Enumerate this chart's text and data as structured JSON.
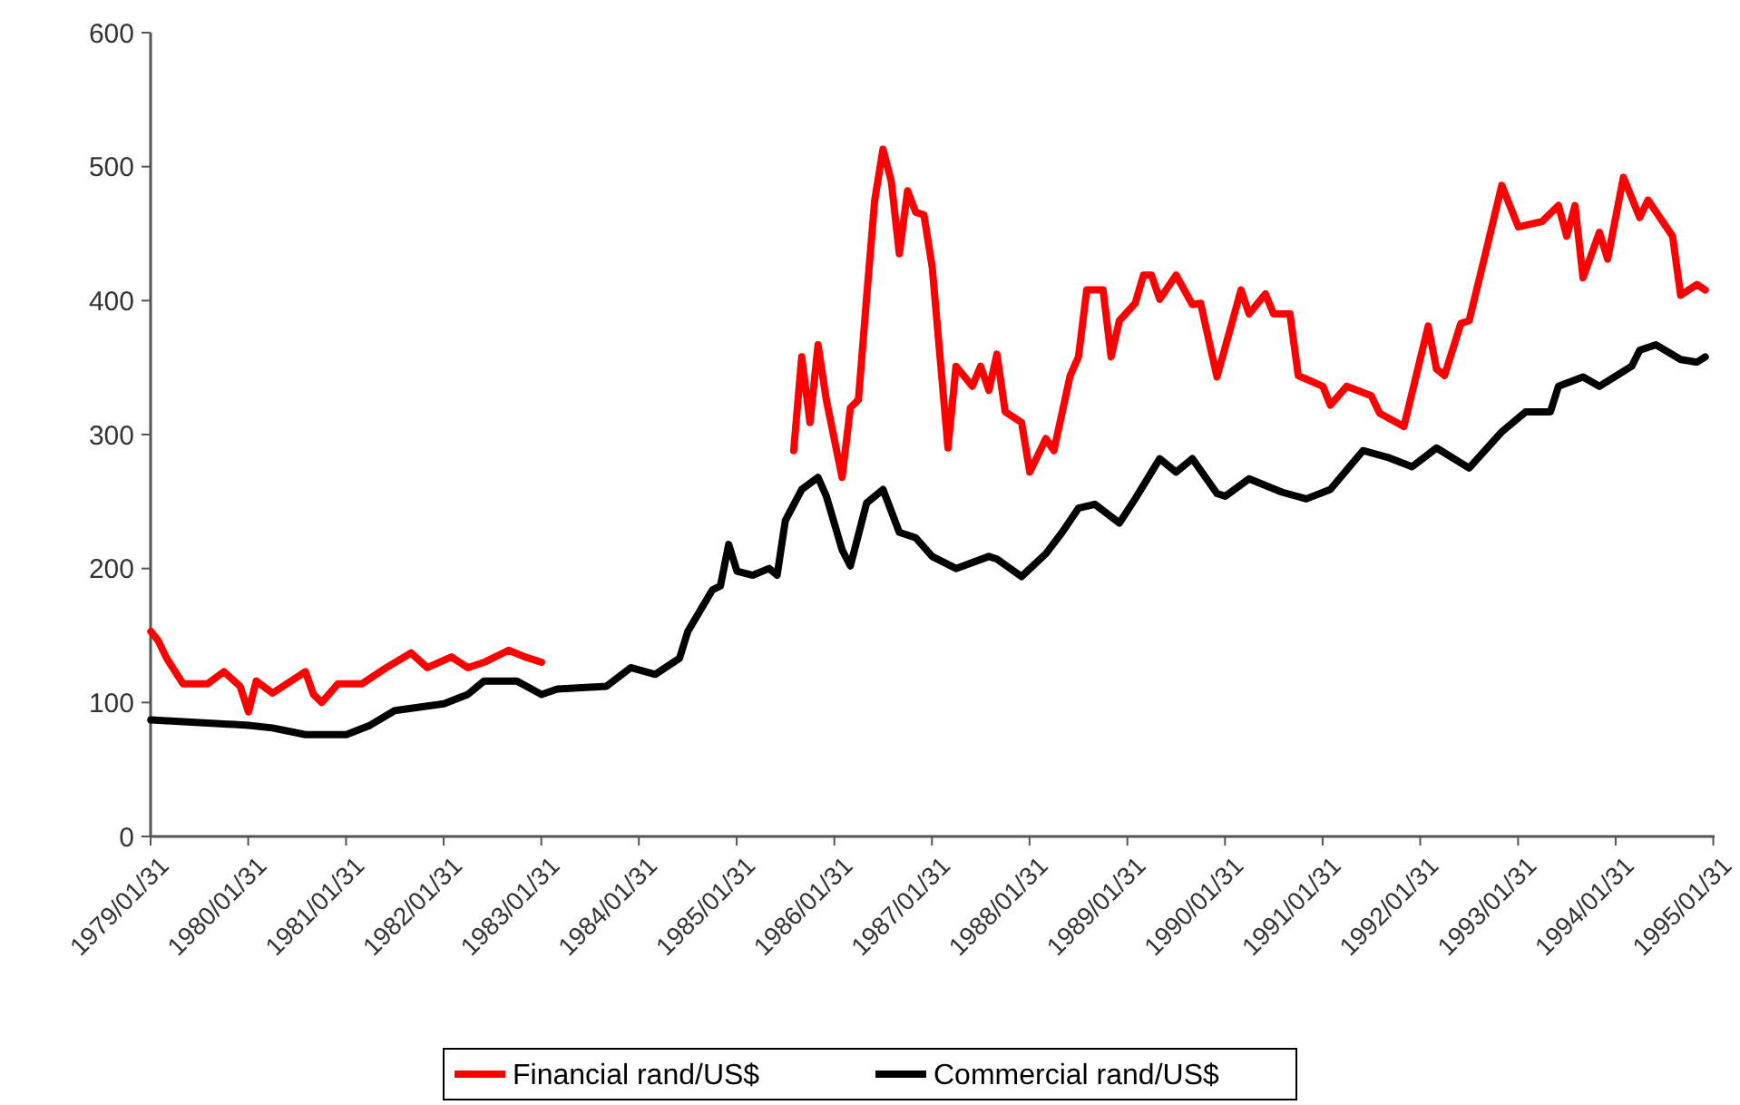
{
  "chart_data": {
    "type": "line",
    "xlim": [
      "1979-01-31",
      "1995-02-05"
    ],
    "xticks": [
      {
        "value": "1979-01-31",
        "label": "1979/01/31"
      },
      {
        "value": "1980-01-31",
        "label": "1980/01/31"
      },
      {
        "value": "1981-01-31",
        "label": "1981/01/31"
      },
      {
        "value": "1982-01-31",
        "label": "1982/01/31"
      },
      {
        "value": "1983-01-31",
        "label": "1983/01/31"
      },
      {
        "value": "1984-01-31",
        "label": "1984/01/31"
      },
      {
        "value": "1985-01-31",
        "label": "1985/01/31"
      },
      {
        "value": "1986-01-31",
        "label": "1986/01/31"
      },
      {
        "value": "1987-01-31",
        "label": "1987/01/31"
      },
      {
        "value": "1988-01-31",
        "label": "1988/01/31"
      },
      {
        "value": "1989-01-31",
        "label": "1989/01/31"
      },
      {
        "value": "1990-01-31",
        "label": "1990/01/31"
      },
      {
        "value": "1991-01-31",
        "label": "1991/01/31"
      },
      {
        "value": "1992-01-31",
        "label": "1992/01/31"
      },
      {
        "value": "1993-01-31",
        "label": "1993/01/31"
      },
      {
        "value": "1994-01-31",
        "label": "1994/01/31"
      },
      {
        "value": "1995-01-31",
        "label": "1995/01/31"
      }
    ],
    "ylim": [
      0,
      600
    ],
    "yticks": [
      0,
      100,
      200,
      300,
      400,
      500,
      600
    ],
    "grid": false,
    "legend": "bottom",
    "marker": "none",
    "line_style": "solid",
    "series": [
      {
        "name": "Financial rand/US$",
        "color": "#ff0000",
        "x": [
          "1979-02",
          "1979-03",
          "1979-04",
          "1979-06",
          "1979-09",
          "1979-11",
          "1980-01",
          "1980-02",
          "1980-03",
          "1980-05",
          "1980-09",
          "1980-10",
          "1980-11",
          "1981-01",
          "1981-04",
          "1981-07",
          "1981-10",
          "1981-12",
          "1982-03",
          "1982-05",
          "1982-07",
          "1982-10",
          "1982-12",
          "1983-02",
          "1984-06",
          "1985-09",
          "1985-10",
          "1985-11",
          "1985-12",
          "1986-01",
          "1986-03",
          "1986-04",
          "1986-05",
          "1986-06",
          "1986-07",
          "1986-08",
          "1986-09",
          "1986-10",
          "1986-11",
          "1986-12",
          "1987-01",
          "1987-02",
          "1987-04",
          "1987-05",
          "1987-07",
          "1987-08",
          "1987-09",
          "1987-10",
          "1987-11",
          "1988-01",
          "1988-02",
          "1988-04",
          "1988-05",
          "1988-07",
          "1988-08",
          "1988-09",
          "1988-11",
          "1988-12",
          "1989-01",
          "1989-03",
          "1989-04",
          "1989-05",
          "1989-06",
          "1989-08",
          "1989-10",
          "1989-11",
          "1990-01",
          "1990-04",
          "1990-05",
          "1990-07",
          "1990-08",
          "1990-10",
          "1990-11",
          "1991-02",
          "1991-03",
          "1991-05",
          "1991-08",
          "1991-09",
          "1991-12",
          "1992-03",
          "1992-04",
          "1992-05",
          "1992-07",
          "1992-08",
          "1992-10",
          "1992-12",
          "1993-02",
          "1993-05",
          "1993-07",
          "1993-08",
          "1993-09",
          "1993-10",
          "1993-12",
          "1994-01",
          "1994-03",
          "1994-05",
          "1994-06",
          "1994-09",
          "1994-10",
          "1994-12",
          "1995-01"
        ],
        "values": [
          153,
          146,
          133,
          114,
          114,
          123,
          112,
          93,
          116,
          107,
          123,
          106,
          100,
          114,
          114,
          126,
          137,
          126,
          134,
          126,
          130,
          139,
          134,
          130,
          null,
          288,
          358,
          309,
          367,
          326,
          268,
          320,
          326,
          403,
          475,
          513,
          489,
          435,
          482,
          466,
          464,
          425,
          290,
          351,
          336,
          351,
          333,
          360,
          317,
          309,
          272,
          297,
          288,
          344,
          358,
          408,
          408,
          358,
          385,
          398,
          419,
          419,
          401,
          419,
          397,
          398,
          343,
          408,
          390,
          405,
          390,
          390,
          344,
          336,
          322,
          336,
          329,
          316,
          306,
          381,
          349,
          344,
          383,
          385,
          435,
          486,
          455,
          459,
          471,
          448,
          471,
          417,
          451,
          431,
          492,
          462,
          475,
          448,
          404,
          412,
          408
        ]
      },
      {
        "name": "Commercial rand/US$",
        "color": "#000000",
        "x": [
          "1979-02",
          "1979-08",
          "1980-02",
          "1980-05",
          "1980-09",
          "1981-02",
          "1981-05",
          "1981-08",
          "1982-02",
          "1982-05",
          "1982-07",
          "1982-11",
          "1983-02",
          "1983-04",
          "1983-10",
          "1984-01",
          "1984-04",
          "1984-07",
          "1984-08",
          "1984-11",
          "1984-12",
          "1985-01",
          "1985-02",
          "1985-04",
          "1985-06",
          "1985-07",
          "1985-08",
          "1985-10",
          "1985-12",
          "1986-01",
          "1986-03",
          "1986-04",
          "1986-06",
          "1986-08",
          "1986-10",
          "1986-12",
          "1987-02",
          "1987-05",
          "1987-09",
          "1987-10",
          "1988-01",
          "1988-04",
          "1988-06",
          "1988-08",
          "1988-10",
          "1989-01",
          "1989-03",
          "1989-06",
          "1989-08",
          "1989-10",
          "1990-01",
          "1990-02",
          "1990-05",
          "1990-09",
          "1990-12",
          "1991-03",
          "1991-07",
          "1991-10",
          "1992-01",
          "1992-04",
          "1992-08",
          "1992-12",
          "1993-03",
          "1993-06",
          "1993-07",
          "1993-10",
          "1993-12",
          "1994-04",
          "1994-05",
          "1994-07",
          "1994-10",
          "1994-12",
          "1995-01"
        ],
        "values": [
          87,
          85,
          83,
          81,
          76,
          76,
          83,
          94,
          99,
          106,
          116,
          116,
          106,
          110,
          112,
          126,
          121,
          133,
          153,
          184,
          187,
          218,
          198,
          195,
          200,
          195,
          236,
          259,
          268,
          254,
          214,
          202,
          249,
          259,
          227,
          223,
          209,
          200,
          209,
          207,
          194,
          211,
          227,
          245,
          248,
          234,
          252,
          282,
          272,
          282,
          256,
          254,
          267,
          257,
          252,
          259,
          288,
          283,
          276,
          290,
          275,
          302,
          317,
          317,
          336,
          343,
          336,
          351,
          363,
          367,
          356,
          354,
          358
        ]
      }
    ]
  }
}
